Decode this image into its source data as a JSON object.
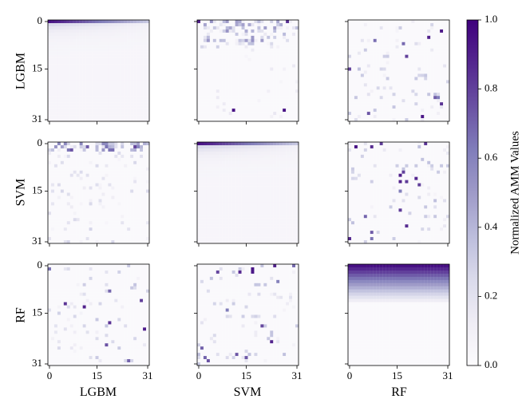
{
  "chart_data": {
    "type": "heatmap",
    "grid_size": 32,
    "models": [
      "LGBM",
      "SVM",
      "RF"
    ],
    "row_labels": [
      "LGBM",
      "SVM",
      "RF"
    ],
    "col_labels": [
      "LGBM",
      "SVM",
      "RF"
    ],
    "tick_values": [
      0,
      15,
      31
    ],
    "tick_labels": [
      "0",
      "15",
      "31"
    ],
    "value_range": [
      0.0,
      1.0
    ],
    "colorbar": {
      "label": "Normalized AMM Values",
      "ticks": [
        0.0,
        0.2,
        0.4,
        0.6,
        0.8,
        1.0
      ],
      "tick_labels": [
        "0.0",
        "0.2",
        "0.4",
        "0.6",
        "0.8",
        "1.0"
      ],
      "color_low": "#fcfbfd",
      "color_high": "#3f007d"
    },
    "cmap": "Purples",
    "panels": [
      {
        "row": "LGBM",
        "col": "LGBM",
        "pattern": "diagonal-top-gradient"
      },
      {
        "row": "LGBM",
        "col": "SVM",
        "pattern": "sparse-top-dense"
      },
      {
        "row": "LGBM",
        "col": "RF",
        "pattern": "sparse"
      },
      {
        "row": "SVM",
        "col": "LGBM",
        "pattern": "sparse-top"
      },
      {
        "row": "SVM",
        "col": "SVM",
        "pattern": "diagonal-top-gradient"
      },
      {
        "row": "SVM",
        "col": "RF",
        "pattern": "sparse"
      },
      {
        "row": "RF",
        "col": "LGBM",
        "pattern": "sparse"
      },
      {
        "row": "RF",
        "col": "SVM",
        "pattern": "sparse"
      },
      {
        "row": "RF",
        "col": "RF",
        "pattern": "diagonal-band"
      }
    ]
  }
}
